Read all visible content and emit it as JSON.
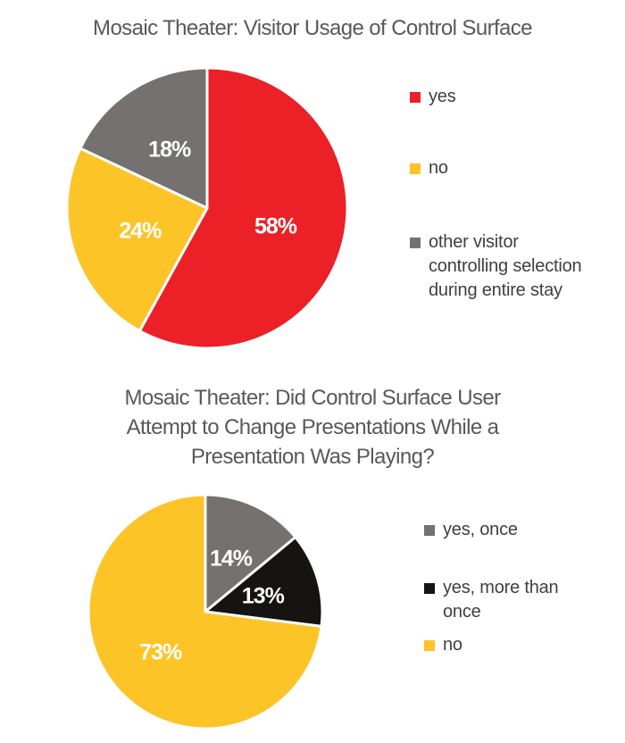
{
  "page": {
    "background": "#FFFFFF"
  },
  "styles": {
    "title_color": "#595959",
    "legend_text_color": "#3F3F3F",
    "slice_label_color": "#FFFFFF",
    "slice_border_color": "#FFFFFF"
  },
  "chart_data": [
    {
      "type": "pie",
      "title": "Mosaic Theater: Visitor Usage of Control Surface",
      "title_display": "Mosaic Theater: Visitor Usage of Control Surface",
      "start_angle_deg": 0,
      "direction": "clockwise",
      "legend_position": "right",
      "units": "percent",
      "slices": [
        {
          "label": "yes",
          "value": 58,
          "display": "58%",
          "color": "#EB2127"
        },
        {
          "label": "no",
          "value": 24,
          "display": "24%",
          "color": "#FDC428"
        },
        {
          "label": "other visitor controlling selection during entire stay",
          "label_display": "other visitor\ncontrolling selection\nduring entire stay",
          "value": 18,
          "display": "18%",
          "color": "#757171"
        }
      ]
    },
    {
      "type": "pie",
      "title": "Mosaic Theater: Did Control Surface User Attempt to Change Presentations While a Presentation Was Playing?",
      "title_display": "Mosaic Theater: Did Control Surface User\nAttempt to Change Presentations While a\nPresentation Was Playing?",
      "start_angle_deg": 0,
      "direction": "clockwise",
      "legend_position": "right",
      "units": "percent",
      "slices": [
        {
          "label": "yes, once",
          "value": 14,
          "display": "14%",
          "color": "#757171"
        },
        {
          "label": "yes, more than once",
          "label_display": "yes, more than\nonce",
          "value": 13,
          "display": "13%",
          "color": "#151413"
        },
        {
          "label": "no",
          "value": 73,
          "display": "73%",
          "color": "#FDC428"
        }
      ]
    }
  ]
}
